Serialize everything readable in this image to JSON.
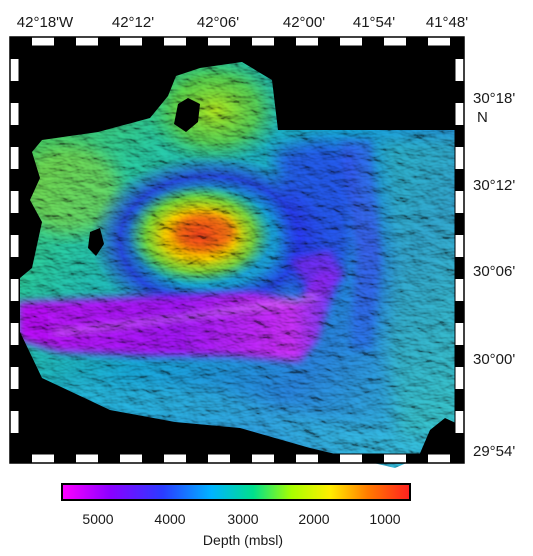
{
  "map": {
    "top_labels": [
      "42°18'W",
      "42°12'",
      "42°06'",
      "42°00'",
      "41°54'",
      "41°48'"
    ],
    "right_labels": {
      "lat_30_18": "30°18'",
      "lat_n": "N",
      "lat_30_12": "30°12'",
      "lat_30_06": "30°06'",
      "lat_30_00": "30°00'",
      "lat_29_54": "29°54'"
    }
  },
  "colorbar": {
    "title": "Depth (mbsl)",
    "tick_labels": [
      "5000",
      "4000",
      "3000",
      "2000",
      "1000"
    ],
    "gradient_colors": [
      "#ff00ff",
      "#8a00ff",
      "#2a3cff",
      "#00b4ff",
      "#00e08c",
      "#a8ff00",
      "#ffee00",
      "#ff7a00",
      "#ff2020"
    ]
  }
}
